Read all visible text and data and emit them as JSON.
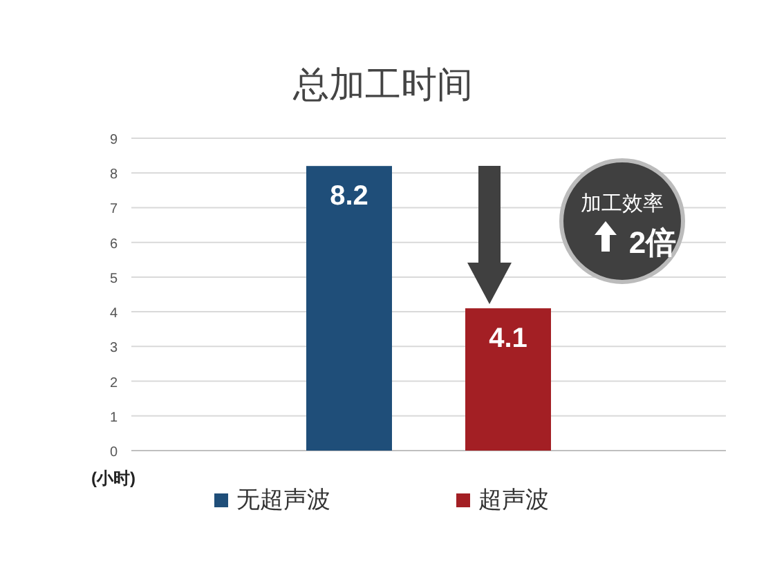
{
  "chart_data": {
    "type": "bar",
    "title": "总加工时间",
    "ylabel": "(小时)",
    "categories": [
      null
    ],
    "series": [
      {
        "name": "无超声波",
        "color": "#1f4e79",
        "values": [
          8.2
        ]
      },
      {
        "name": "超声波",
        "color": "#a31f24",
        "values": [
          4.1
        ]
      }
    ],
    "ylim": [
      0,
      9
    ],
    "yticks": [
      0,
      1,
      2,
      3,
      4,
      5,
      6,
      7,
      8,
      9
    ],
    "grid": "y",
    "data_labels": true,
    "legend": "bottom",
    "annotations": [
      "加工效率",
      "2倍"
    ]
  }
}
